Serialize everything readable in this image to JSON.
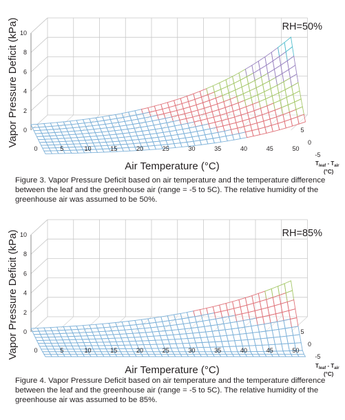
{
  "chart_data": [
    {
      "type": "surface",
      "rh_label": "RH=50%",
      "rh": 0.5,
      "ylabel": "Vapor Pressure Deficit (kPa)",
      "xlabel": "Air Temperature (°C)",
      "zlabel_main": "T",
      "zlabel_sub1": "leaf",
      "zlabel_sep": " - T",
      "zlabel_sub2": "air",
      "zlabel_unit": "(°C)",
      "x_ticks": [
        "0",
        "5",
        "10",
        "15",
        "20",
        "25",
        "30",
        "35",
        "40",
        "45",
        "50"
      ],
      "y_ticks": [
        "0",
        "2",
        "4",
        "6",
        "8",
        "10"
      ],
      "z_ticks": [
        "5",
        "0",
        "-5"
      ],
      "x_range": [
        0,
        50
      ],
      "y_range": [
        0,
        10
      ],
      "dT_range": [
        -5,
        5
      ],
      "band_colors": [
        "#7fb2d9",
        "#e0737a",
        "#a6c86a",
        "#9b85c2",
        "#55bfcf"
      ],
      "caption": "Figure 3. Vapor Pressure Deficit based on air temperature and the temperature difference between the leaf and the greenhouse air (range = -5 to 5C). The relative humidity of the greenhouse air was assumed to be 50%."
    },
    {
      "type": "surface",
      "rh_label": "RH=85%",
      "rh": 0.85,
      "ylabel": "Vapor Pressure Deficit (kPa)",
      "xlabel": "Air Temperature (°C)",
      "zlabel_main": "T",
      "zlabel_sub1": "leaf",
      "zlabel_sep": " - T",
      "zlabel_sub2": "air",
      "zlabel_unit": "(°C)",
      "x_ticks": [
        "0",
        "5",
        "10",
        "15",
        "20",
        "25",
        "30",
        "35",
        "40",
        "45",
        "50"
      ],
      "y_ticks": [
        "0",
        "2",
        "4",
        "6",
        "8",
        "10"
      ],
      "z_ticks": [
        "5",
        "0",
        "-5"
      ],
      "x_range": [
        0,
        50
      ],
      "y_range": [
        0,
        10
      ],
      "dT_range": [
        -5,
        5
      ],
      "band_colors": [
        "#7fb2d9",
        "#e0737a",
        "#a6c86a",
        "#9b85c2",
        "#55bfcf"
      ],
      "caption": "Figure 4. Vapor Pressure Deficit based on air temperature and the temperature difference between the leaf and the greenhouse air (range = -5 to 5C). The relative humidity of the greenhouse air was assumed to be 85%."
    }
  ]
}
